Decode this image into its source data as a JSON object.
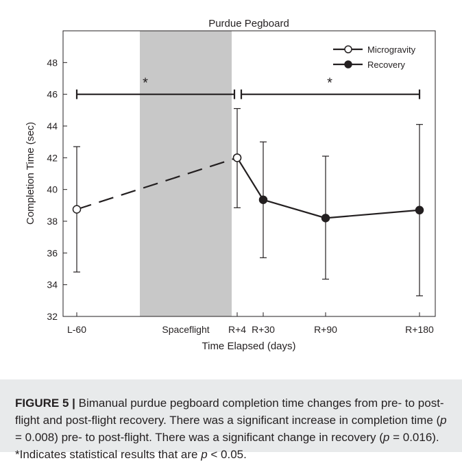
{
  "chart_data": {
    "type": "line",
    "title": "Purdue Pegboard",
    "xlabel": "Time Elapsed (days)",
    "ylabel": "Completion Time (sec)",
    "ylim": [
      32,
      50
    ],
    "yticks": [
      32,
      34,
      36,
      38,
      40,
      42,
      44,
      46,
      48
    ],
    "x_unit": "days",
    "xticks": [
      {
        "x": -60,
        "label": "L-60"
      },
      {
        "x": 4,
        "label": "R+4"
      },
      {
        "x": 30,
        "label": "R+30"
      },
      {
        "x": 90,
        "label": "R+90"
      },
      {
        "x": 180,
        "label": "R+180"
      }
    ],
    "series": [
      {
        "name": "Microgravity",
        "style": "dashed",
        "marker": "open-circle",
        "points": [
          {
            "x": -60,
            "y": 38.75,
            "err_low": 34.8,
            "err_high": 42.7
          },
          {
            "x": 4,
            "y": 42.0,
            "err_low": 38.85,
            "err_high": 45.1
          }
        ]
      },
      {
        "name": "Recovery",
        "style": "solid",
        "marker": "filled-circle",
        "points": [
          {
            "x": 4,
            "y": 42.0,
            "err_low": 38.85,
            "err_high": 45.1
          },
          {
            "x": 30,
            "y": 39.35,
            "err_low": 35.7,
            "err_high": 43.0
          },
          {
            "x": 90,
            "y": 38.2,
            "err_low": 34.35,
            "err_high": 42.1
          },
          {
            "x": 180,
            "y": 38.7,
            "err_low": 33.3,
            "err_high": 44.1
          }
        ]
      }
    ],
    "shaded_region": {
      "label": "Spaceflight",
      "color": "#c8c8c8"
    },
    "significance": [
      {
        "from": "L-60",
        "to": "R+4",
        "y": 46,
        "label": "*"
      },
      {
        "from": "R+4",
        "to": "R+180",
        "y": 46,
        "label": "*"
      }
    ],
    "legend": {
      "position": "top-right",
      "entries": [
        "Microgravity",
        "Recovery"
      ]
    }
  },
  "caption": {
    "label": "FIGURE 5 |",
    "part1": " Bimanual purdue pegboard completion time changes from pre- to post-flight and post-flight recovery. There was a significant increase in completion time (",
    "p1_var": "p",
    "p1_val": " = 0.008) pre- to post-flight. There was a significant change in recovery (",
    "p2_var": "p",
    "p2_val": " = 0.016). *Indicates statistical results that are ",
    "p3_var": "p",
    "p3_val": " < 0.05."
  },
  "colors": {
    "line": "#231f20",
    "shade": "#c8c8c8",
    "caption_bg": "#e8eaeb"
  }
}
